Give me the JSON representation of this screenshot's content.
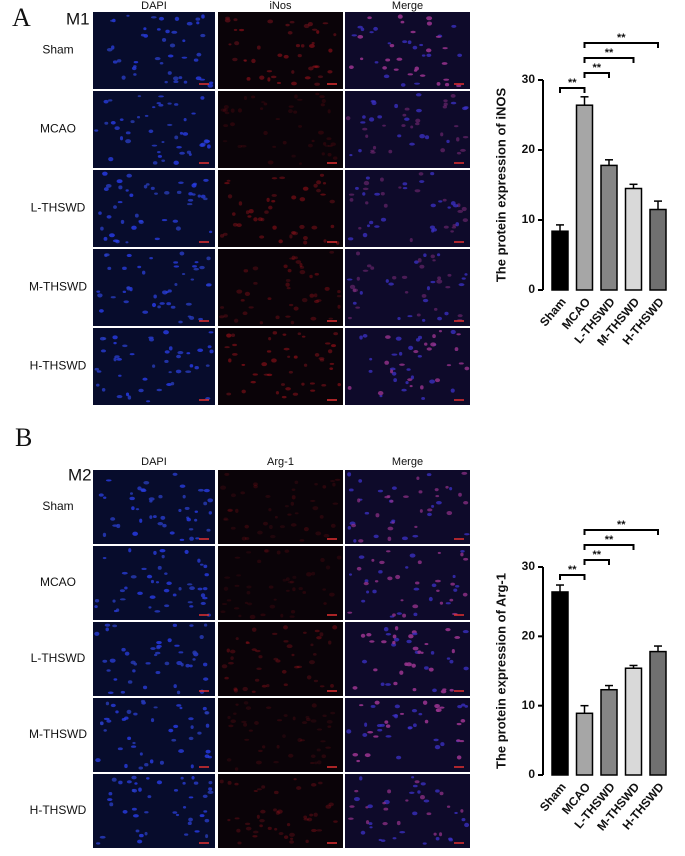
{
  "figure": {
    "panels": [
      {
        "letter": "A",
        "group": "M1",
        "columns": [
          "DAPI",
          "iNos",
          "Merge"
        ],
        "rows": [
          "Sham",
          "MCAO",
          "L-THSWD",
          "M-THSWD",
          "H-THSWD"
        ]
      },
      {
        "letter": "B",
        "group": "M2",
        "columns": [
          "DAPI",
          "Arg-1",
          "Merge"
        ],
        "rows": [
          "Sham",
          "MCAO",
          "L-THSWD",
          "M-THSWD",
          "H-THSWD"
        ]
      }
    ]
  },
  "chart_data": [
    {
      "type": "bar",
      "ylabel": "The protein expression of iNOS",
      "categories": [
        "Sham",
        "MCAO",
        "L-THSWD",
        "M-THSWD",
        "H-THSWD"
      ],
      "values": [
        8.4,
        26.4,
        17.8,
        14.5,
        11.5
      ],
      "errors": [
        0.9,
        1.2,
        0.8,
        0.6,
        1.2
      ],
      "colors": [
        "#000000",
        "#a6a6a6",
        "#858585",
        "#d9d9d9",
        "#707070"
      ],
      "ylim": [
        0,
        30
      ],
      "yticks": [
        0,
        10,
        20,
        30
      ],
      "significance": [
        {
          "pair": [
            "Sham",
            "MCAO"
          ],
          "label": "**"
        },
        {
          "pair": [
            "MCAO",
            "L-THSWD"
          ],
          "label": "**"
        },
        {
          "pair": [
            "MCAO",
            "M-THSWD"
          ],
          "label": "**"
        },
        {
          "pair": [
            "MCAO",
            "H-THSWD"
          ],
          "label": "**"
        }
      ]
    },
    {
      "type": "bar",
      "ylabel": "The protein expression of Arg-1",
      "categories": [
        "Sham",
        "MCAO",
        "L-THSWD",
        "M-THSWD",
        "H-THSWD"
      ],
      "values": [
        26.4,
        8.9,
        12.3,
        15.4,
        17.8
      ],
      "errors": [
        1.0,
        1.1,
        0.6,
        0.4,
        0.8
      ],
      "colors": [
        "#000000",
        "#a6a6a6",
        "#858585",
        "#d9d9d9",
        "#707070"
      ],
      "ylim": [
        0,
        30
      ],
      "yticks": [
        0,
        10,
        20,
        30
      ],
      "significance": [
        {
          "pair": [
            "Sham",
            "MCAO"
          ],
          "label": "**"
        },
        {
          "pair": [
            "MCAO",
            "L-THSWD"
          ],
          "label": "**"
        },
        {
          "pair": [
            "MCAO",
            "M-THSWD"
          ],
          "label": "**"
        },
        {
          "pair": [
            "MCAO",
            "H-THSWD"
          ],
          "label": "**"
        }
      ]
    }
  ]
}
